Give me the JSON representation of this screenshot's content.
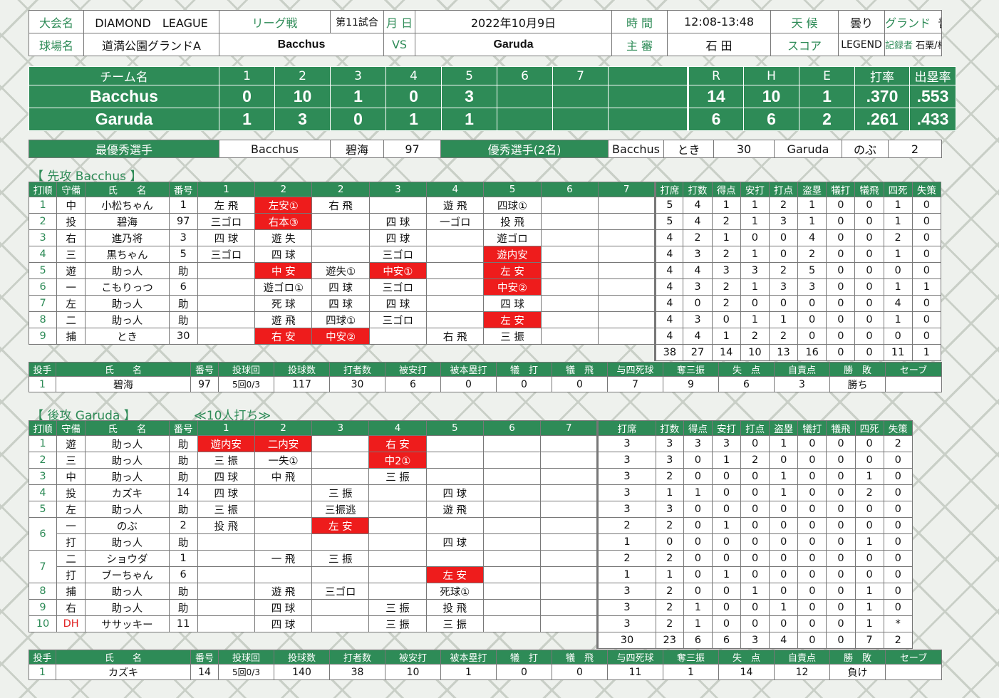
{
  "meta": {
    "tournament_label": "大会名",
    "tournament": "DIAMOND　LEAGUE",
    "type": "リーグ戦",
    "game_no": "第11試合",
    "date_label": "月 日",
    "date": "2022年10月9日",
    "time_label": "時 間",
    "time": "12:08-13:48",
    "weather_label": "天 候",
    "weather": "曇り",
    "ground_label": "グランド",
    "ground": "普通",
    "venue_label": "球場名",
    "venue": "道満公園グランドA",
    "home_team": "Bacchus",
    "vs": "VS",
    "away_team": "Garuda",
    "umpire_label": "主 審",
    "umpire": "石 田",
    "score_label": "スコア",
    "scorer_app": "LEGEND",
    "recorder_label": "記録者",
    "recorder": "石栗/村井"
  },
  "linescore": {
    "headers": [
      "チーム名",
      "1",
      "2",
      "3",
      "4",
      "5",
      "6",
      "7",
      "",
      "R",
      "H",
      "E",
      "打率",
      "出塁率"
    ],
    "rows": [
      [
        "Bacchus",
        "0",
        "10",
        "1",
        "0",
        "3",
        "",
        "",
        "",
        "14",
        "10",
        "1",
        ".370",
        ".553"
      ],
      [
        "Garuda",
        "1",
        "3",
        "0",
        "1",
        "1",
        "",
        "",
        "",
        "6",
        "6",
        "2",
        ".261",
        ".433"
      ]
    ]
  },
  "awards": [
    "最優秀選手",
    "Bacchus",
    "碧海",
    "97",
    "優秀選手(2名)",
    "Bacchus",
    "とき",
    "30",
    "Garuda",
    "のぶ",
    "2"
  ],
  "bacchus": {
    "title": "【 先攻 Bacchus 】",
    "note": "",
    "headers": [
      "打順",
      "守備",
      "氏　　名",
      "番号",
      "1",
      "2",
      "2",
      "3",
      "4",
      "5",
      "6",
      "7",
      "打席",
      "打数",
      "得点",
      "安打",
      "打点",
      "盗塁",
      "犠打",
      "犠飛",
      "四死",
      "失策"
    ],
    "rows": [
      [
        "1",
        "中",
        "小松ちゃん",
        "1",
        "左 飛",
        "左安①",
        "右 飛",
        "",
        "遊 飛",
        "四球①",
        "",
        "",
        "5",
        "4",
        "1",
        "1",
        "2",
        "1",
        "0",
        "0",
        "1",
        "0"
      ],
      [
        "2",
        "投",
        "碧海",
        "97",
        "三ゴロ",
        "右本③",
        "",
        "四 球",
        "一ゴロ",
        "投 飛",
        "",
        "",
        "5",
        "4",
        "2",
        "1",
        "3",
        "1",
        "0",
        "0",
        "1",
        "0"
      ],
      [
        "3",
        "右",
        "進乃将",
        "3",
        "四 球",
        "遊 失",
        "",
        "四 球",
        "",
        "遊ゴロ",
        "",
        "",
        "4",
        "2",
        "1",
        "0",
        "0",
        "4",
        "0",
        "0",
        "2",
        "0"
      ],
      [
        "4",
        "三",
        "黒ちゃん",
        "5",
        "三ゴロ",
        "四 球",
        "",
        "三ゴロ",
        "",
        "遊内安",
        "",
        "",
        "4",
        "3",
        "2",
        "1",
        "0",
        "2",
        "0",
        "0",
        "1",
        "0"
      ],
      [
        "5",
        "遊",
        "助っ人",
        "助",
        "",
        "中 安",
        "遊失①",
        "中安①",
        "",
        "左 安",
        "",
        "",
        "4",
        "4",
        "3",
        "3",
        "2",
        "5",
        "0",
        "0",
        "0",
        "0"
      ],
      [
        "6",
        "一",
        "こもりっつ",
        "6",
        "",
        "遊ゴロ①",
        "四 球",
        "三ゴロ",
        "",
        "中安②",
        "",
        "",
        "4",
        "3",
        "2",
        "1",
        "3",
        "3",
        "0",
        "0",
        "1",
        "1"
      ],
      [
        "7",
        "左",
        "助っ人",
        "助",
        "",
        "死 球",
        "四 球",
        "四 球",
        "",
        "四 球",
        "",
        "",
        "4",
        "0",
        "2",
        "0",
        "0",
        "0",
        "0",
        "0",
        "4",
        "0"
      ],
      [
        "8",
        "二",
        "助っ人",
        "助",
        "",
        "遊 飛",
        "四球①",
        "三ゴロ",
        "",
        "左 安",
        "",
        "",
        "4",
        "3",
        "0",
        "1",
        "1",
        "0",
        "0",
        "0",
        "1",
        "0"
      ],
      [
        "9",
        "捕",
        "とき",
        "30",
        "",
        "右 安",
        "中安②",
        "",
        "右 飛",
        "三 振",
        "",
        "",
        "4",
        "4",
        "1",
        "2",
        "2",
        "0",
        "0",
        "0",
        "0",
        "0"
      ]
    ],
    "hits": [
      [
        0,
        5
      ],
      [
        1,
        5
      ],
      [
        3,
        9
      ],
      [
        4,
        5
      ],
      [
        4,
        7
      ],
      [
        4,
        9
      ],
      [
        5,
        9
      ],
      [
        7,
        9
      ],
      [
        8,
        5
      ],
      [
        8,
        6
      ]
    ],
    "totals": [
      "38",
      "27",
      "14",
      "10",
      "13",
      "16",
      "0",
      "0",
      "11",
      "1"
    ],
    "pitch_headers": [
      "投手",
      "氏　　名",
      "番号",
      "投球回",
      "投球数",
      "打者数",
      "被安打",
      "被本塁打",
      "犠　打",
      "犠　飛",
      "与四死球",
      "奪三振",
      "失　点",
      "自責点",
      "勝　敗",
      "セーブ"
    ],
    "pitchers": [
      [
        "1",
        "碧海",
        "97",
        "5回0/3",
        "117",
        "30",
        "6",
        "0",
        "0",
        "0",
        "7",
        "9",
        "6",
        "3",
        "勝ち",
        ""
      ]
    ]
  },
  "garuda": {
    "title": "【 後攻 Garuda 】",
    "note": "≪10人打ち≫",
    "headers": [
      "打順",
      "守備",
      "氏　　名",
      "番号",
      "1",
      "2",
      "3",
      "4",
      "5",
      "6",
      "7",
      "打席",
      "打数",
      "得点",
      "安打",
      "打点",
      "盗塁",
      "犠打",
      "犠飛",
      "四死",
      "失策"
    ],
    "rows": [
      [
        "1",
        "遊",
        "助っ人",
        "助",
        "遊内安",
        "二内安",
        "",
        "右 安",
        "",
        "",
        "",
        "3",
        "3",
        "3",
        "3",
        "0",
        "1",
        "0",
        "0",
        "0",
        "2"
      ],
      [
        "2",
        "三",
        "助っ人",
        "助",
        "三 振",
        "一失①",
        "",
        "中2①",
        "",
        "",
        "",
        "3",
        "3",
        "0",
        "1",
        "2",
        "0",
        "0",
        "0",
        "0",
        "0"
      ],
      [
        "3",
        "中",
        "助っ人",
        "助",
        "四 球",
        "中 飛",
        "",
        "三 振",
        "",
        "",
        "",
        "3",
        "2",
        "0",
        "0",
        "0",
        "1",
        "0",
        "0",
        "1",
        "0"
      ],
      [
        "4",
        "投",
        "カズキ",
        "14",
        "四 球",
        "",
        "三 振",
        "",
        "四 球",
        "",
        "",
        "3",
        "1",
        "1",
        "0",
        "0",
        "1",
        "0",
        "0",
        "2",
        "0"
      ],
      [
        "5",
        "左",
        "助っ人",
        "助",
        "三 振",
        "",
        "三振逃",
        "",
        "遊 飛",
        "",
        "",
        "3",
        "3",
        "0",
        "0",
        "0",
        "0",
        "0",
        "0",
        "0",
        "0"
      ],
      [
        "6",
        "一",
        "のぶ",
        "2",
        "投 飛",
        "",
        "左 安",
        "",
        "",
        "",
        "",
        "2",
        "2",
        "0",
        "1",
        "0",
        "0",
        "0",
        "0",
        "0",
        "0"
      ],
      [
        "",
        "打",
        "助っ人",
        "助",
        "",
        "",
        "",
        "",
        "四 球",
        "",
        "",
        "1",
        "0",
        "0",
        "0",
        "0",
        "0",
        "0",
        "0",
        "1",
        "0"
      ],
      [
        "7",
        "二",
        "ショウダ",
        "1",
        "",
        "一 飛",
        "三 振",
        "",
        "",
        "",
        "",
        "2",
        "2",
        "0",
        "0",
        "0",
        "0",
        "0",
        "0",
        "0",
        "0"
      ],
      [
        "",
        "打",
        "ブーちゃん",
        "6",
        "",
        "",
        "",
        "",
        "左 安",
        "",
        "",
        "1",
        "1",
        "0",
        "1",
        "0",
        "0",
        "0",
        "0",
        "0",
        "0"
      ],
      [
        "8",
        "捕",
        "助っ人",
        "助",
        "",
        "遊 飛",
        "三ゴロ",
        "",
        "死球①",
        "",
        "",
        "3",
        "2",
        "0",
        "0",
        "1",
        "0",
        "0",
        "0",
        "1",
        "0"
      ],
      [
        "9",
        "右",
        "助っ人",
        "助",
        "",
        "四 球",
        "",
        "三 振",
        "投 飛",
        "",
        "",
        "3",
        "2",
        "1",
        "0",
        "0",
        "1",
        "0",
        "0",
        "1",
        "0"
      ],
      [
        "10",
        "DH",
        "ササッキー",
        "11",
        "",
        "四 球",
        "",
        "三 振",
        "三 振",
        "",
        "",
        "3",
        "2",
        "1",
        "0",
        "0",
        "0",
        "0",
        "0",
        "1",
        "*"
      ]
    ],
    "hits": [
      [
        0,
        4
      ],
      [
        0,
        5
      ],
      [
        0,
        7
      ],
      [
        1,
        7
      ],
      [
        5,
        6
      ],
      [
        8,
        8
      ]
    ],
    "totals": [
      "30",
      "23",
      "6",
      "6",
      "3",
      "4",
      "0",
      "0",
      "7",
      "2"
    ],
    "pitch_headers": [
      "投手",
      "氏　　名",
      "番号",
      "投球回",
      "投球数",
      "打者数",
      "被安打",
      "被本塁打",
      "犠　打",
      "犠　飛",
      "与四死球",
      "奪三振",
      "失　点",
      "自責点",
      "勝　敗",
      "セーブ"
    ],
    "pitchers": [
      [
        "1",
        "カズキ",
        "14",
        "5回0/3",
        "140",
        "38",
        "10",
        "1",
        "0",
        "0",
        "11",
        "1",
        "14",
        "12",
        "負け",
        ""
      ]
    ]
  },
  "colors": {
    "header_green": "#2e8b57",
    "hit_red": "#ee1c1c",
    "dh_red": "#e02020"
  }
}
